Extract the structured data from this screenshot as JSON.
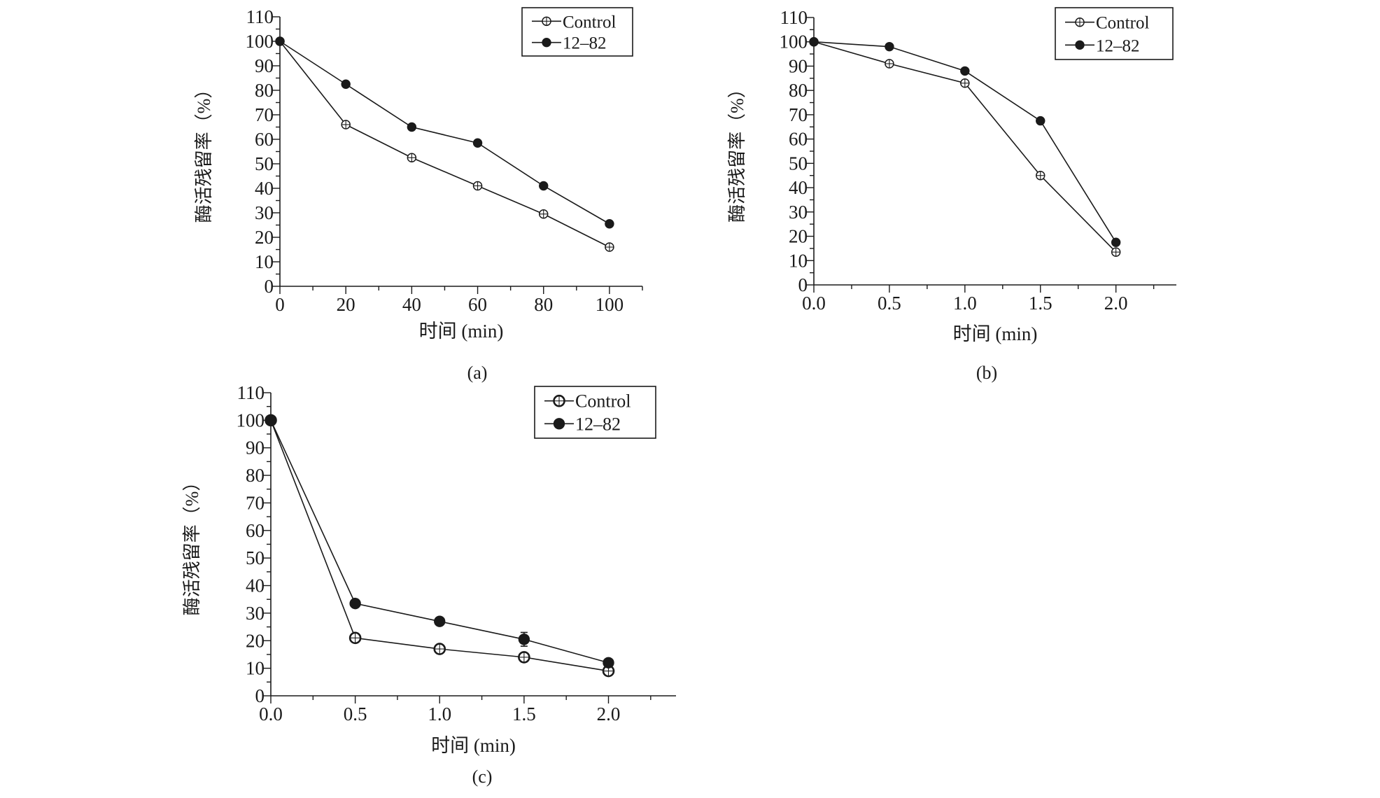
{
  "colors": {
    "ink": "#1a1a1a",
    "background": "#ffffff"
  },
  "chart_data": [
    {
      "id": "a",
      "type": "line",
      "caption": "(a)",
      "xlabel": "时间 (min)",
      "ylabel": "酶活残留率（%）",
      "xlim": [
        0,
        110
      ],
      "ylim": [
        0,
        110
      ],
      "xticks": [
        0,
        20,
        40,
        60,
        80,
        100
      ],
      "xtick_labels": [
        "0",
        "20",
        "40",
        "60",
        "80",
        "100"
      ],
      "yticks": [
        0,
        10,
        20,
        30,
        40,
        50,
        60,
        70,
        80,
        90,
        100,
        110
      ],
      "ytick_labels": [
        "0",
        "10",
        "20",
        "30",
        "40",
        "50",
        "60",
        "70",
        "80",
        "90",
        "100",
        "110"
      ],
      "legend_position": "top-right",
      "x": [
        0,
        20,
        40,
        60,
        80,
        100
      ],
      "series": [
        {
          "name": "Control",
          "marker": "open-circle",
          "values": [
            100,
            66,
            52.5,
            41,
            29.5,
            16
          ]
        },
        {
          "name": "12–82",
          "marker": "filled-circle",
          "values": [
            100,
            82.5,
            65,
            58.5,
            41,
            25.5
          ]
        }
      ]
    },
    {
      "id": "b",
      "type": "line",
      "caption": "(b)",
      "xlabel": "时间 (min)",
      "ylabel": "酶活残留率（%）",
      "xlim": [
        0,
        2.4
      ],
      "ylim": [
        0,
        110
      ],
      "xticks": [
        0,
        0.5,
        1,
        1.5,
        2
      ],
      "xtick_labels": [
        "0.0",
        "0.5",
        "1.0",
        "1.5",
        "2.0"
      ],
      "yticks": [
        0,
        10,
        20,
        30,
        40,
        50,
        60,
        70,
        80,
        90,
        100,
        110
      ],
      "ytick_labels": [
        "0",
        "10",
        "20",
        "30",
        "40",
        "50",
        "60",
        "70",
        "80",
        "90",
        "100",
        "110"
      ],
      "legend_position": "top-right",
      "x": [
        0,
        0.5,
        1,
        1.5,
        2
      ],
      "series": [
        {
          "name": "Control",
          "marker": "open-circle",
          "values": [
            100,
            91,
            83,
            45,
            13.5
          ]
        },
        {
          "name": "12–82",
          "marker": "filled-circle",
          "values": [
            100,
            98,
            88,
            67.5,
            17.5
          ]
        }
      ]
    },
    {
      "id": "c",
      "type": "line",
      "caption": "(c)",
      "xlabel": "时间 (min)",
      "ylabel": "酶活残留率（%）",
      "xlim": [
        0,
        2.4
      ],
      "ylim": [
        0,
        110
      ],
      "xticks": [
        0,
        0.5,
        1,
        1.5,
        2
      ],
      "xtick_labels": [
        "0.0",
        "0.5",
        "1.0",
        "1.5",
        "2.0"
      ],
      "yticks": [
        0,
        10,
        20,
        30,
        40,
        50,
        60,
        70,
        80,
        90,
        100,
        110
      ],
      "ytick_labels": [
        "0",
        "10",
        "20",
        "30",
        "40",
        "50",
        "60",
        "70",
        "80",
        "90",
        "100",
        "110"
      ],
      "legend_position": "top-right",
      "x": [
        0,
        0.5,
        1,
        1.5,
        2
      ],
      "series": [
        {
          "name": "Control",
          "marker": "open-circle",
          "values": [
            100,
            21,
            17,
            14,
            9
          ]
        },
        {
          "name": "12–82",
          "marker": "filled-circle",
          "values": [
            100,
            33.5,
            27,
            20.5,
            12
          ],
          "error": [
            0,
            0,
            0,
            2.5,
            0
          ]
        }
      ]
    }
  ]
}
